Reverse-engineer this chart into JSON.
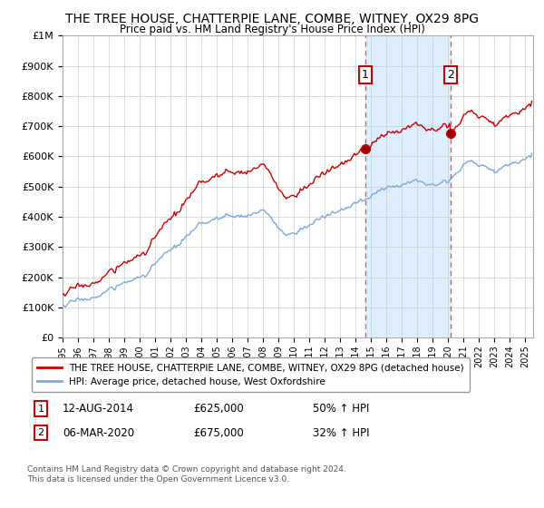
{
  "title": "THE TREE HOUSE, CHATTERPIE LANE, COMBE, WITNEY, OX29 8PG",
  "subtitle": "Price paid vs. HM Land Registry's House Price Index (HPI)",
  "legend_line1": "THE TREE HOUSE, CHATTERPIE LANE, COMBE, WITNEY, OX29 8PG (detached house)",
  "legend_line2": "HPI: Average price, detached house, West Oxfordshire",
  "sale1_label": "12-AUG-2014",
  "sale1_price": "£625,000",
  "sale1_hpi": "50% ↑ HPI",
  "sale1_year": 2014.625,
  "sale1_value": 625000,
  "sale2_label": "06-MAR-2020",
  "sale2_price": "£675,000",
  "sale2_hpi": "32% ↑ HPI",
  "sale2_year": 2020.167,
  "sale2_value": 675000,
  "footnote1": "Contains HM Land Registry data © Crown copyright and database right 2024.",
  "footnote2": "This data is licensed under the Open Government Licence v3.0.",
  "red_color": "#cc0000",
  "blue_color": "#7aaadd",
  "shade_color": "#ddeeff",
  "dashed_color": "#dd4444",
  "background_color": "#ffffff",
  "grid_color": "#cccccc",
  "ylim": [
    0,
    1000000
  ],
  "xlim_start": 1995.0,
  "xlim_end": 2025.5
}
